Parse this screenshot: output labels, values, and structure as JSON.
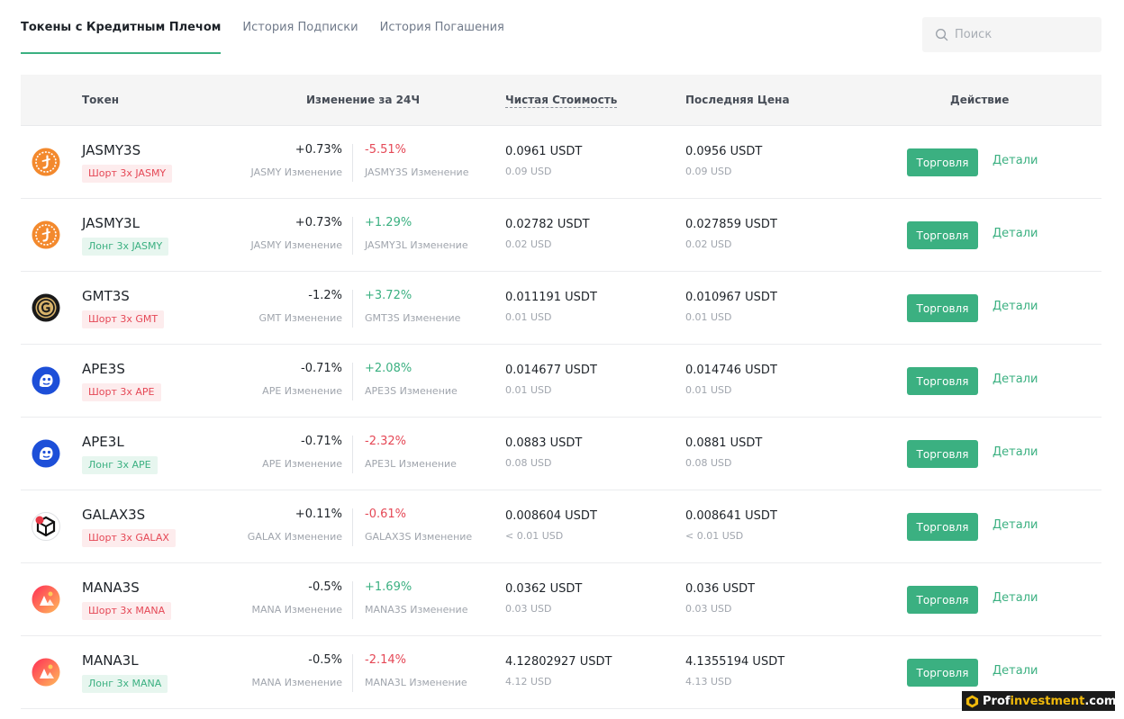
{
  "tabs": [
    {
      "label": "Токены с Кредитным Плечом",
      "active": true
    },
    {
      "label": "История Подписки",
      "active": false
    },
    {
      "label": "История Погашения",
      "active": false
    }
  ],
  "search": {
    "placeholder": "Поиск",
    "icon": "search-icon"
  },
  "columns": {
    "token": "Токен",
    "change24h": "Изменение за 24Ч",
    "nav": "Чистая Стоимость",
    "last_price": "Последняя Цена",
    "action": "Действие"
  },
  "colors": {
    "accent": "#3bb081",
    "negative": "#e54856",
    "short_badge_bg": "#fdeced",
    "long_badge_bg": "#e7f6ef"
  },
  "rows": [
    {
      "symbol": "JASMY3S",
      "badge": "Шорт 3x JASMY",
      "direction": "short",
      "coin_icon": "jasmy-coin-icon",
      "underlying_change": "+0.73%",
      "underlying_dir": "neu",
      "underlying_label": "JASMY Изменение",
      "token_change": "-5.51%",
      "token_dir": "neg",
      "token_label": "JASMY3S Изменение",
      "nav": "0.0961 USDT",
      "nav_usd": "0.09 USD",
      "last": "0.0956 USDT",
      "last_usd": "0.09 USD",
      "trade": "Торговля",
      "details": "Детали"
    },
    {
      "symbol": "JASMY3L",
      "badge": "Лонг 3x JASMY",
      "direction": "long",
      "coin_icon": "jasmy-coin-icon",
      "underlying_change": "+0.73%",
      "underlying_dir": "neu",
      "underlying_label": "JASMY Изменение",
      "token_change": "+1.29%",
      "token_dir": "pos",
      "token_label": "JASMY3L Изменение",
      "nav": "0.02782 USDT",
      "nav_usd": "0.02 USD",
      "last": "0.027859 USDT",
      "last_usd": "0.02 USD",
      "trade": "Торговля",
      "details": "Детали"
    },
    {
      "symbol": "GMT3S",
      "badge": "Шорт 3x GMT",
      "direction": "short",
      "coin_icon": "gmt-coin-icon",
      "underlying_change": "-1.2%",
      "underlying_dir": "neu",
      "underlying_label": "GMT Изменение",
      "token_change": "+3.72%",
      "token_dir": "pos",
      "token_label": "GMT3S Изменение",
      "nav": "0.011191 USDT",
      "nav_usd": "0.01 USD",
      "last": "0.010967 USDT",
      "last_usd": "0.01 USD",
      "trade": "Торговля",
      "details": "Детали"
    },
    {
      "symbol": "APE3S",
      "badge": "Шорт 3x APE",
      "direction": "short",
      "coin_icon": "ape-coin-icon",
      "underlying_change": "-0.71%",
      "underlying_dir": "neu",
      "underlying_label": "APE Изменение",
      "token_change": "+2.08%",
      "token_dir": "pos",
      "token_label": "APE3S Изменение",
      "nav": "0.014677 USDT",
      "nav_usd": "0.01 USD",
      "last": "0.014746 USDT",
      "last_usd": "0.01 USD",
      "trade": "Торговля",
      "details": "Детали"
    },
    {
      "symbol": "APE3L",
      "badge": "Лонг 3x APE",
      "direction": "long",
      "coin_icon": "ape-coin-icon",
      "underlying_change": "-0.71%",
      "underlying_dir": "neu",
      "underlying_label": "APE Изменение",
      "token_change": "-2.32%",
      "token_dir": "neg",
      "token_label": "APE3L Изменение",
      "nav": "0.0883 USDT",
      "nav_usd": "0.08 USD",
      "last": "0.0881 USDT",
      "last_usd": "0.08 USD",
      "trade": "Торговля",
      "details": "Детали"
    },
    {
      "symbol": "GALAX3S",
      "badge": "Шорт 3x GALAX",
      "direction": "short",
      "coin_icon": "galax-coin-icon",
      "underlying_change": "+0.11%",
      "underlying_dir": "neu",
      "underlying_label": "GALAX Изменение",
      "token_change": "-0.61%",
      "token_dir": "neg",
      "token_label": "GALAX3S Изменение",
      "nav": "0.008604 USDT",
      "nav_usd": "< 0.01 USD",
      "last": "0.008641 USDT",
      "last_usd": "< 0.01 USD",
      "trade": "Торговля",
      "details": "Детали"
    },
    {
      "symbol": "MANA3S",
      "badge": "Шорт 3x MANA",
      "direction": "short",
      "coin_icon": "mana-coin-icon",
      "underlying_change": "-0.5%",
      "underlying_dir": "neu",
      "underlying_label": "MANA Изменение",
      "token_change": "+1.69%",
      "token_dir": "pos",
      "token_label": "MANA3S Изменение",
      "nav": "0.0362 USDT",
      "nav_usd": "0.03 USD",
      "last": "0.036 USDT",
      "last_usd": "0.03 USD",
      "trade": "Торговля",
      "details": "Детали"
    },
    {
      "symbol": "MANA3L",
      "badge": "Лонг 3x MANA",
      "direction": "long",
      "coin_icon": "mana-coin-icon",
      "underlying_change": "-0.5%",
      "underlying_dir": "neu",
      "underlying_label": "MANA Изменение",
      "token_change": "-2.14%",
      "token_dir": "neg",
      "token_label": "MANA3L Изменение",
      "nav": "4.12802927 USDT",
      "nav_usd": "4.12 USD",
      "last": "4.1355194 USDT",
      "last_usd": "4.13 USD",
      "trade": "Торговля",
      "details": "Детали"
    }
  ],
  "watermark": {
    "prefix": "Prof",
    "accent": "investment",
    "suffix": ".com"
  }
}
